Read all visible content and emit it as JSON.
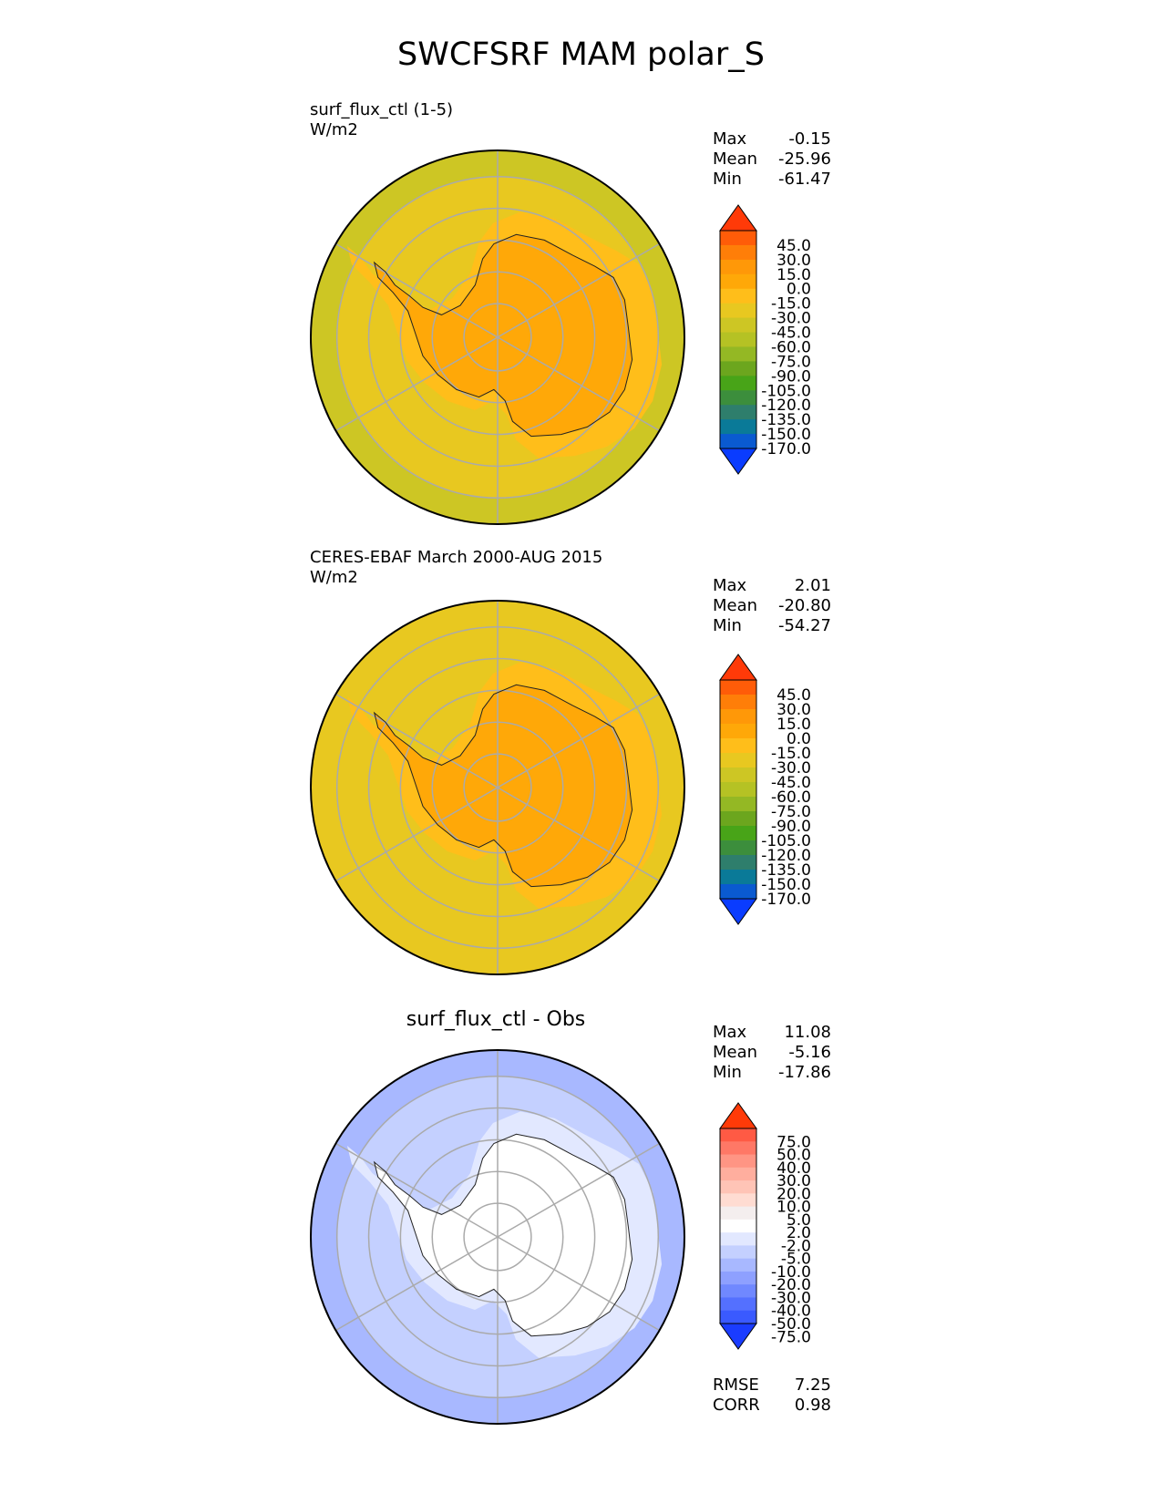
{
  "figure_title": "SWCFSRF MAM polar_S",
  "panels": [
    {
      "title_line1": "surf_flux_ctl (1-5)",
      "title_line2": "W/m2",
      "stats": [
        {
          "label": "Max",
          "value": "-0.15"
        },
        {
          "label": "Mean",
          "value": "-25.96"
        },
        {
          "label": "Min",
          "value": "-61.47"
        }
      ]
    },
    {
      "title_line1": "CERES-EBAF March 2000-AUG 2015",
      "title_line2": "W/m2",
      "stats": [
        {
          "label": "Max",
          "value": "2.01"
        },
        {
          "label": "Mean",
          "value": "-20.80"
        },
        {
          "label": "Min",
          "value": "-54.27"
        }
      ]
    },
    {
      "title": "surf_flux_ctl - Obs",
      "stats": [
        {
          "label": "Max",
          "value": "11.08"
        },
        {
          "label": "Mean",
          "value": "-5.16"
        },
        {
          "label": "Min",
          "value": "-17.86"
        }
      ],
      "extra_stats": [
        {
          "label": "RMSE",
          "value": "7.25"
        },
        {
          "label": "CORR",
          "value": "0.98"
        }
      ]
    }
  ],
  "chart_data": [
    {
      "type": "heatmap",
      "projection": "south polar stereographic",
      "colorbar": {
        "ticks": [
          "45.0",
          "30.0",
          "15.0",
          "0.0",
          "-15.0",
          "-30.0",
          "-45.0",
          "-60.0",
          "-75.0",
          "-90.0",
          "-105.0",
          "-120.0",
          "-135.0",
          "-150.0",
          "-170.0"
        ],
        "colors": [
          "#ff3a08",
          "#ff5c08",
          "#ff7e08",
          "#ff9808",
          "#ffa808",
          "#ffbe1a",
          "#e8c820",
          "#cdc624",
          "#b5c224",
          "#94b824",
          "#6ca61e",
          "#48a418",
          "#3c8e3c",
          "#2e7e6c",
          "#0a7a98",
          "#0a5ad0",
          "#0a3cff"
        ],
        "extend": "both"
      },
      "regions": {
        "ocean_outer": -55,
        "ocean_inner": -40,
        "coast_ring": -30,
        "continent": -15
      }
    },
    {
      "type": "heatmap",
      "projection": "south polar stereographic",
      "colorbar": {
        "ticks": [
          "45.0",
          "30.0",
          "15.0",
          "0.0",
          "-15.0",
          "-30.0",
          "-45.0",
          "-60.0",
          "-75.0",
          "-90.0",
          "-105.0",
          "-120.0",
          "-135.0",
          "-150.0",
          "-170.0"
        ],
        "colors": [
          "#ff3a08",
          "#ff5c08",
          "#ff7e08",
          "#ff9808",
          "#ffa808",
          "#ffbe1a",
          "#e8c820",
          "#cdc624",
          "#b5c224",
          "#94b824",
          "#6ca61e",
          "#48a418",
          "#3c8e3c",
          "#2e7e6c",
          "#0a7a98",
          "#0a5ad0",
          "#0a3cff"
        ],
        "extend": "both"
      },
      "regions": {
        "ocean_outer": -45,
        "ocean_inner": -35,
        "coast_ring": -25,
        "continent": -15
      }
    },
    {
      "type": "heatmap",
      "projection": "south polar stereographic",
      "colorbar": {
        "ticks": [
          "75.0",
          "50.0",
          "40.0",
          "30.0",
          "20.0",
          "10.0",
          "5.0",
          "2.0",
          "-2.0",
          "-5.0",
          "-10.0",
          "-20.0",
          "-30.0",
          "-40.0",
          "-50.0",
          "-75.0"
        ],
        "colors": [
          "#ff3a08",
          "#ff5a44",
          "#ff7866",
          "#ff9584",
          "#ffae9e",
          "#ffc4b6",
          "#ffdcd2",
          "#f4eeee",
          "#ffffff",
          "#e2e8ff",
          "#c4d0ff",
          "#a8b8ff",
          "#8ea0ff",
          "#7088ff",
          "#5470ff",
          "#3a5aff",
          "#1a3cff"
        ],
        "extend": "both"
      },
      "regions": {
        "ocean_outer": -12,
        "ocean_inner": -8,
        "coast_ring": -3,
        "continent": 0
      }
    }
  ]
}
